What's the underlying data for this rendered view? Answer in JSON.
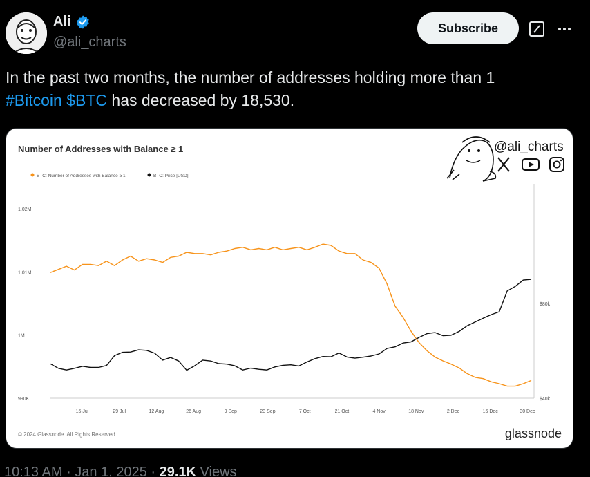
{
  "author": {
    "name": "Ali",
    "handle": "@ali_charts"
  },
  "actions": {
    "subscribe_label": "Subscribe"
  },
  "tweet": {
    "text_1": "In the past two months, the number of addresses holding more than 1",
    "hashtag": "#Bitcoin",
    "cashtag": "$BTC",
    "text_2": "has decreased by 18,530."
  },
  "meta": {
    "time": "10:13 AM",
    "date": "Jan 1, 2025",
    "views_count": "29.1K",
    "views_label": "Views"
  },
  "colors": {
    "link": "#1d9bf0",
    "addresses_series": "#f7931a",
    "price_series": "#111111"
  },
  "chart_data": {
    "type": "line",
    "title": "Number of Addresses with Balance ≥ 1",
    "watermark_handle": "@ali_charts",
    "copyright": "© 2024 Glassnode. All Rights Reserved.",
    "brand": "glassnode",
    "legend": [
      "BTC: Number of Addresses with Balance ≥ 1",
      "BTC: Price [USD]"
    ],
    "x_ticks": [
      "15 Jul",
      "29 Jul",
      "12 Aug",
      "26 Aug",
      "9 Sep",
      "23 Sep",
      "7 Oct",
      "21 Oct",
      "4 Nov",
      "18 Nov",
      "2 Dec",
      "16 Dec",
      "30 Dec"
    ],
    "y_left_ticks": [
      "1.02M",
      "1.01M",
      "1M",
      "990K"
    ],
    "y_left_range": [
      990000,
      1020000
    ],
    "y_right_ticks": [
      "$80k",
      "$40k"
    ],
    "y_right_range": [
      40000,
      80000
    ],
    "series": [
      {
        "name": "BTC: Number of Addresses with Balance ≥ 1",
        "axis": "left",
        "values": [
          1009900,
          1010400,
          1010900,
          1010300,
          1011200,
          1011200,
          1011000,
          1011700,
          1011000,
          1011900,
          1012500,
          1011700,
          1012100,
          1011900,
          1011500,
          1012300,
          1012500,
          1013100,
          1012900,
          1012900,
          1012700,
          1013100,
          1013300,
          1013700,
          1013900,
          1013500,
          1013700,
          1013500,
          1013900,
          1013500,
          1013700,
          1013900,
          1013500,
          1013900,
          1014400,
          1014200,
          1013300,
          1012900,
          1012900,
          1011900,
          1011500,
          1010600,
          1008100,
          1004600,
          1002800,
          1000600,
          998800,
          997500,
          996500,
          995900,
          995400,
          994800,
          993900,
          993300,
          993100,
          992600,
          992300,
          991900,
          991900,
          992300,
          992800
        ],
        "price_values": [
          54500,
          52600,
          51900,
          52600,
          53500,
          53000,
          53000,
          53800,
          58000,
          59400,
          59500,
          60400,
          60200,
          59000,
          56100,
          57200,
          55700,
          51800,
          53700,
          56100,
          55700,
          54600,
          54400,
          53700,
          51900,
          52700,
          52200,
          51900,
          53200,
          53900,
          54100,
          53600,
          55300,
          56700,
          57600,
          57500,
          59100,
          57400,
          56900,
          57300,
          57800,
          58700,
          61000,
          61700,
          63300,
          63800,
          65700,
          67300,
          67700,
          66400,
          66600,
          68200,
          70600,
          72200,
          73800,
          75300,
          76500,
          85300,
          87200,
          89900,
          90200
        ]
      }
    ]
  }
}
